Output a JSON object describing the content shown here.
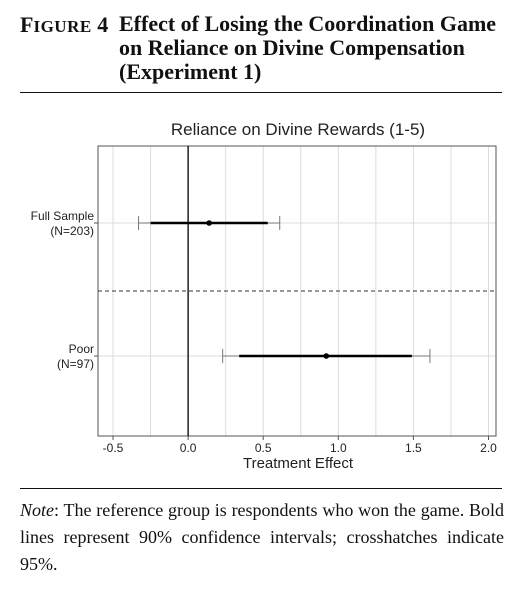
{
  "figure": {
    "label_first": "F",
    "label_rest": "IGURE",
    "label_number": "4",
    "title": "Effect of Losing the Coordination Game on Reliance on Divine Compensation (Experiment 1)"
  },
  "note": {
    "label": "Note",
    "text": ": The reference group is respondents who won the game. Bold lines represent 90% confidence intervals; crosshatches indicate 95%."
  },
  "chart_data": {
    "type": "coefficient-plot",
    "title": "Reliance on Divine Rewards (1-5)",
    "xlabel": "Treatment Effect",
    "ylabel": "",
    "xlim": [
      -0.6,
      2.05
    ],
    "x_ticks": [
      -0.5,
      0.0,
      0.5,
      1.0,
      1.5,
      2.0
    ],
    "x_tick_labels": [
      "-0.5",
      "0.0",
      "0.5",
      "1.0",
      "1.5",
      "2.0"
    ],
    "reference_line": 0,
    "grid": true,
    "groups": [
      {
        "label": "Full Sample",
        "n_label": "(N=203)",
        "estimate": 0.14,
        "ci90": [
          -0.25,
          0.53
        ],
        "ci95": [
          -0.33,
          0.61
        ]
      },
      {
        "label": "Poor",
        "n_label": "(N=97)",
        "estimate": 0.92,
        "ci90": [
          0.34,
          1.49
        ],
        "ci95": [
          0.23,
          1.61
        ]
      }
    ]
  }
}
